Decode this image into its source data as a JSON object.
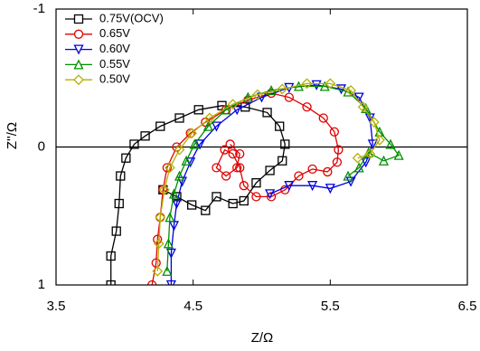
{
  "chart_data": {
    "type": "scatter-line",
    "xlabel": "Z/Ω",
    "ylabel": "Z''/Ω",
    "xlim": [
      3.5,
      6.5
    ],
    "xticks": [
      3.5,
      4.5,
      5.5,
      6.5
    ],
    "ylim": [
      -1,
      1
    ],
    "yticks": [
      -1,
      0,
      1
    ],
    "y_inverted": true,
    "zero_line": true,
    "legend": "top-left",
    "series": [
      {
        "name": "0.75V(OCV)",
        "color": "#000000",
        "marker": "square",
        "x": [
          3.9,
          3.9,
          3.94,
          3.96,
          3.97,
          4.01,
          4.07,
          4.15,
          4.26,
          4.4,
          4.54,
          4.71,
          4.88,
          5.04,
          5.13,
          5.17,
          5.15,
          5.06,
          4.96,
          4.87,
          4.79,
          4.67,
          4.59,
          4.49,
          4.38,
          4.28
        ],
        "values": [
          1.0,
          0.79,
          0.61,
          0.41,
          0.21,
          0.08,
          -0.02,
          -0.08,
          -0.15,
          -0.21,
          -0.27,
          -0.3,
          -0.29,
          -0.25,
          -0.15,
          -0.02,
          0.1,
          0.17,
          0.26,
          0.39,
          0.41,
          0.36,
          0.46,
          0.42,
          0.36,
          0.31
        ]
      },
      {
        "name": "0.65V",
        "color": "#e00000",
        "marker": "circle",
        "x": [
          4.2,
          4.23,
          4.24,
          4.26,
          4.28,
          4.31,
          4.38,
          4.48,
          4.59,
          4.74,
          4.9,
          5.07,
          5.2,
          5.33,
          5.45,
          5.53,
          5.56,
          5.55,
          5.48,
          5.37,
          5.27,
          5.17,
          5.07,
          4.96,
          4.87,
          4.84,
          4.79,
          4.73,
          4.67,
          4.74,
          4.82,
          4.84,
          4.77
        ],
        "values": [
          1.0,
          0.84,
          0.67,
          0.51,
          0.31,
          0.15,
          0.0,
          -0.1,
          -0.18,
          -0.27,
          -0.34,
          -0.39,
          -0.36,
          -0.29,
          -0.21,
          -0.11,
          0.02,
          0.11,
          0.18,
          0.16,
          0.21,
          0.31,
          0.36,
          0.36,
          0.28,
          0.15,
          0.05,
          0.02,
          0.15,
          0.21,
          0.15,
          0.05,
          -0.02
        ]
      },
      {
        "name": "0.60V",
        "color": "#0000e0",
        "marker": "triangle-down",
        "x": [
          4.34,
          4.34,
          4.36,
          4.38,
          4.42,
          4.48,
          4.55,
          4.67,
          4.82,
          5.0,
          5.2,
          5.4,
          5.58,
          5.71,
          5.79,
          5.81,
          5.76,
          5.65,
          5.5,
          5.37,
          5.2,
          5.06
        ],
        "values": [
          1.0,
          0.77,
          0.57,
          0.41,
          0.25,
          0.11,
          -0.02,
          -0.15,
          -0.27,
          -0.36,
          -0.43,
          -0.45,
          -0.42,
          -0.36,
          -0.21,
          -0.02,
          0.11,
          0.25,
          0.3,
          0.28,
          0.28,
          0.34
        ]
      },
      {
        "name": "0.55V",
        "color": "#009000",
        "marker": "triangle-up",
        "x": [
          4.31,
          4.32,
          4.33,
          4.36,
          4.4,
          4.45,
          4.51,
          4.61,
          4.74,
          4.9,
          5.07,
          5.27,
          5.46,
          5.63,
          5.76,
          5.86,
          5.94,
          6.0,
          5.89,
          5.78,
          5.71,
          5.63
        ],
        "values": [
          0.9,
          0.7,
          0.51,
          0.34,
          0.21,
          0.1,
          -0.02,
          -0.15,
          -0.27,
          -0.36,
          -0.41,
          -0.44,
          -0.44,
          -0.4,
          -0.28,
          -0.11,
          -0.02,
          0.06,
          0.1,
          0.04,
          0.15,
          0.21
        ]
      },
      {
        "name": "0.50V",
        "color": "#b5b000",
        "marker": "diamond",
        "x": [
          4.24,
          4.25,
          4.26,
          4.29,
          4.33,
          4.4,
          4.49,
          4.62,
          4.79,
          4.97,
          5.15,
          5.33,
          5.5,
          5.65,
          5.74,
          5.82,
          5.86,
          5.79,
          5.7
        ],
        "values": [
          0.9,
          0.7,
          0.51,
          0.31,
          0.15,
          0.02,
          -0.1,
          -0.21,
          -0.31,
          -0.38,
          -0.42,
          -0.46,
          -0.46,
          -0.41,
          -0.29,
          -0.18,
          -0.05,
          0.05,
          0.08
        ]
      }
    ]
  }
}
